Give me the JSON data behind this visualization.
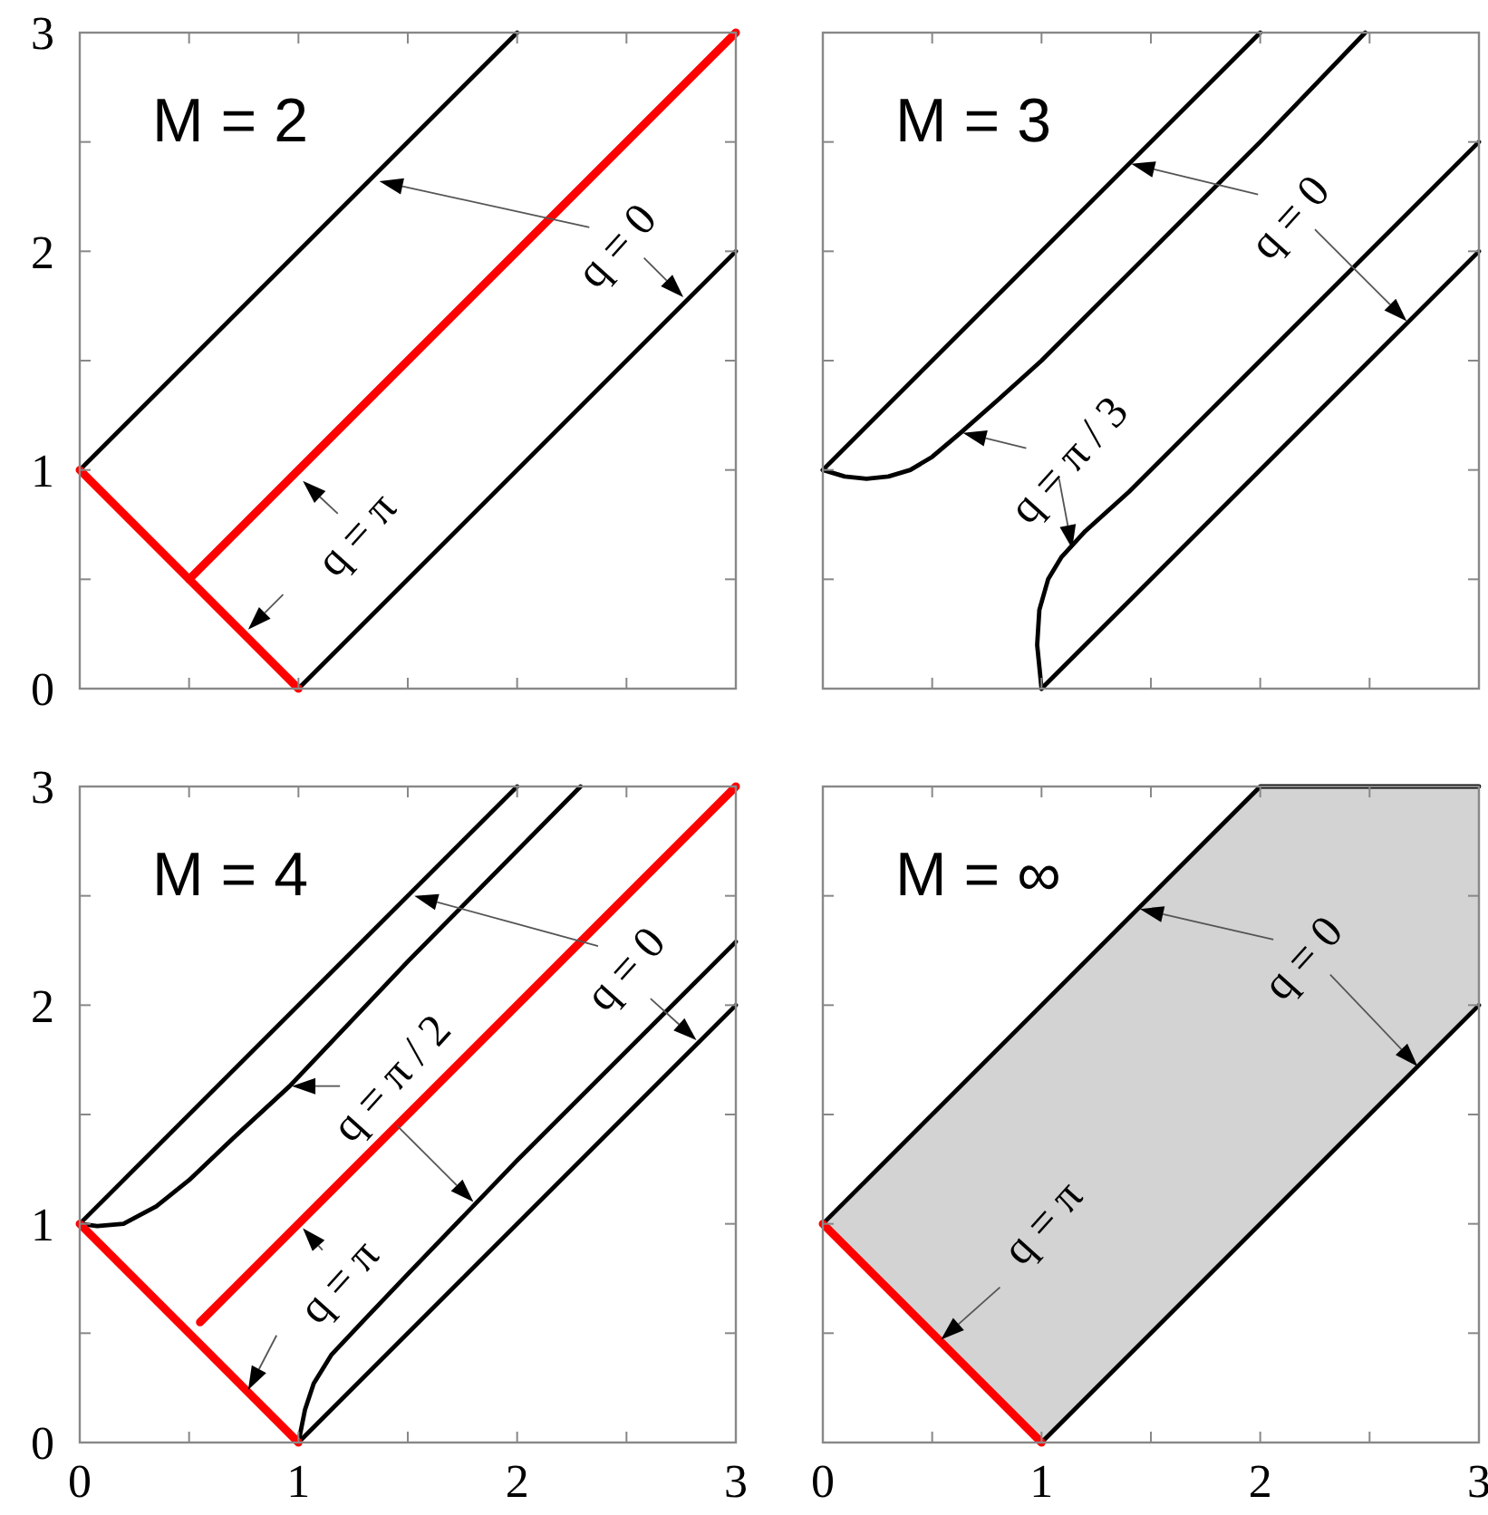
{
  "chart_data": [
    {
      "type": "line",
      "title": "M = 2",
      "xlim": [
        0,
        3
      ],
      "ylim": [
        0,
        3
      ],
      "xticks": [
        0,
        {
          "value": 0.5,
          "label": null
        },
        1,
        {
          "value": 1.5,
          "label": null
        },
        2,
        {
          "value": 2.5,
          "label": null
        },
        3
      ],
      "yticks": [
        0,
        {
          "value": 0.5,
          "label": null
        },
        1,
        {
          "value": 1.5,
          "label": null
        },
        2,
        {
          "value": 2.5,
          "label": null
        },
        3
      ],
      "tick_labels": "y",
      "series": [
        {
          "color": "#000000",
          "x": [
            0,
            2
          ],
          "values": [
            1,
            3
          ]
        },
        {
          "color": "#000000",
          "x": [
            1,
            3
          ],
          "values": [
            0,
            2
          ]
        },
        {
          "color": "#ff0000",
          "x": [
            0,
            1
          ],
          "values": [
            1,
            0
          ]
        },
        {
          "color": "#ff0000",
          "x": [
            0.5,
            3
          ],
          "values": [
            0.5,
            3
          ]
        }
      ],
      "annotations": [
        "q = 0",
        "q = π"
      ]
    },
    {
      "type": "line",
      "title": "M = 3",
      "xlim": [
        0,
        3
      ],
      "ylim": [
        0,
        3
      ],
      "xticks": [
        0,
        {
          "value": 0.5,
          "label": null
        },
        1,
        {
          "value": 1.5,
          "label": null
        },
        2,
        {
          "value": 2.5,
          "label": null
        },
        3
      ],
      "yticks": [
        0,
        {
          "value": 0.5,
          "label": null
        },
        1,
        {
          "value": 1.5,
          "label": null
        },
        2,
        {
          "value": 2.5,
          "label": null
        },
        3
      ],
      "tick_labels": false,
      "series": [
        {
          "color": "#000000",
          "x": [
            0,
            2
          ],
          "values": [
            1,
            3
          ]
        },
        {
          "color": "#000000",
          "x": [
            0,
            0.1,
            0.2,
            0.3,
            0.4,
            0.5,
            0.63,
            0.8,
            1,
            1.5,
            2,
            2.48
          ],
          "values": [
            1,
            0.97,
            0.96,
            0.97,
            1,
            1.06,
            1.17,
            1.32,
            1.5,
            2,
            2.5,
            3
          ]
        },
        {
          "color": "#000000",
          "x": [
            1,
            0.98,
            0.99,
            1.03,
            1.09,
            1.2,
            1.4,
            1.7,
            2,
            3
          ],
          "values": [
            0,
            0.2,
            0.36,
            0.5,
            0.6,
            0.72,
            0.9,
            1.2,
            1.5,
            2.5
          ]
        },
        {
          "color": "#000000",
          "x": [
            1,
            3
          ],
          "values": [
            0,
            2
          ]
        }
      ],
      "annotations": [
        "q = 0",
        "q = π / 3"
      ]
    },
    {
      "type": "line",
      "title": "M = 4",
      "xlim": [
        0,
        3
      ],
      "ylim": [
        0,
        3
      ],
      "xticks": [
        0,
        {
          "value": 0.5,
          "label": null
        },
        1,
        {
          "value": 1.5,
          "label": null
        },
        2,
        {
          "value": 2.5,
          "label": null
        },
        3
      ],
      "yticks": [
        0,
        {
          "value": 0.5,
          "label": null
        },
        1,
        {
          "value": 1.5,
          "label": null
        },
        2,
        {
          "value": 2.5,
          "label": null
        },
        3
      ],
      "series": [
        {
          "color": "#000000",
          "x": [
            0,
            2
          ],
          "values": [
            1,
            3
          ]
        },
        {
          "color": "#000000",
          "x": [
            0,
            0.08,
            0.2,
            0.35,
            0.5,
            0.7,
            0.96,
            1.5,
            2.29
          ],
          "values": [
            1,
            0.99,
            1,
            1.08,
            1.2,
            1.39,
            1.63,
            2.2,
            3
          ]
        },
        {
          "color": "#000000",
          "x": [
            1,
            1.03,
            1.07,
            1.15,
            1.3,
            1.5,
            2,
            3
          ],
          "values": [
            0,
            0.15,
            0.27,
            0.4,
            0.56,
            0.77,
            1.29,
            2.29
          ]
        },
        {
          "color": "#000000",
          "x": [
            1,
            3
          ],
          "values": [
            0,
            2
          ]
        },
        {
          "color": "#ff0000",
          "x": [
            0,
            1
          ],
          "values": [
            1,
            0
          ]
        },
        {
          "color": "#ff0000",
          "x": [
            0.55,
            3
          ],
          "values": [
            0.55,
            3
          ]
        }
      ],
      "annotations": [
        "q = π / 2",
        "q = 0",
        "q = π"
      ]
    },
    {
      "type": "line",
      "title": "M = ∞",
      "xlim": [
        0,
        3
      ],
      "ylim": [
        0,
        3
      ],
      "xticks": [
        0,
        {
          "value": 0.5,
          "label": null
        },
        1,
        {
          "value": 1.5,
          "label": null
        },
        2,
        {
          "value": 2.5,
          "label": null
        },
        3
      ],
      "yticks": [
        0,
        {
          "value": 0.5,
          "label": null
        },
        1,
        {
          "value": 1.5,
          "label": null
        },
        2,
        {
          "value": 2.5,
          "label": null
        },
        3
      ],
      "tick_labels": "x",
      "series": [
        {
          "color": "#000000",
          "x": [
            0,
            1,
            2,
            3
          ],
          "values": [
            1,
            2,
            3,
            3
          ],
          "lower": [
            1,
            0,
            1,
            2
          ],
          "upper": [
            1,
            2,
            3,
            3
          ]
        },
        {
          "color": "#000000",
          "x": [
            1,
            3
          ],
          "values": [
            0,
            2
          ]
        },
        {
          "color": "#ff0000",
          "x": [
            0,
            1
          ],
          "values": [
            1,
            0
          ]
        }
      ],
      "annotations": [
        "q = 0",
        "q = π"
      ]
    }
  ]
}
